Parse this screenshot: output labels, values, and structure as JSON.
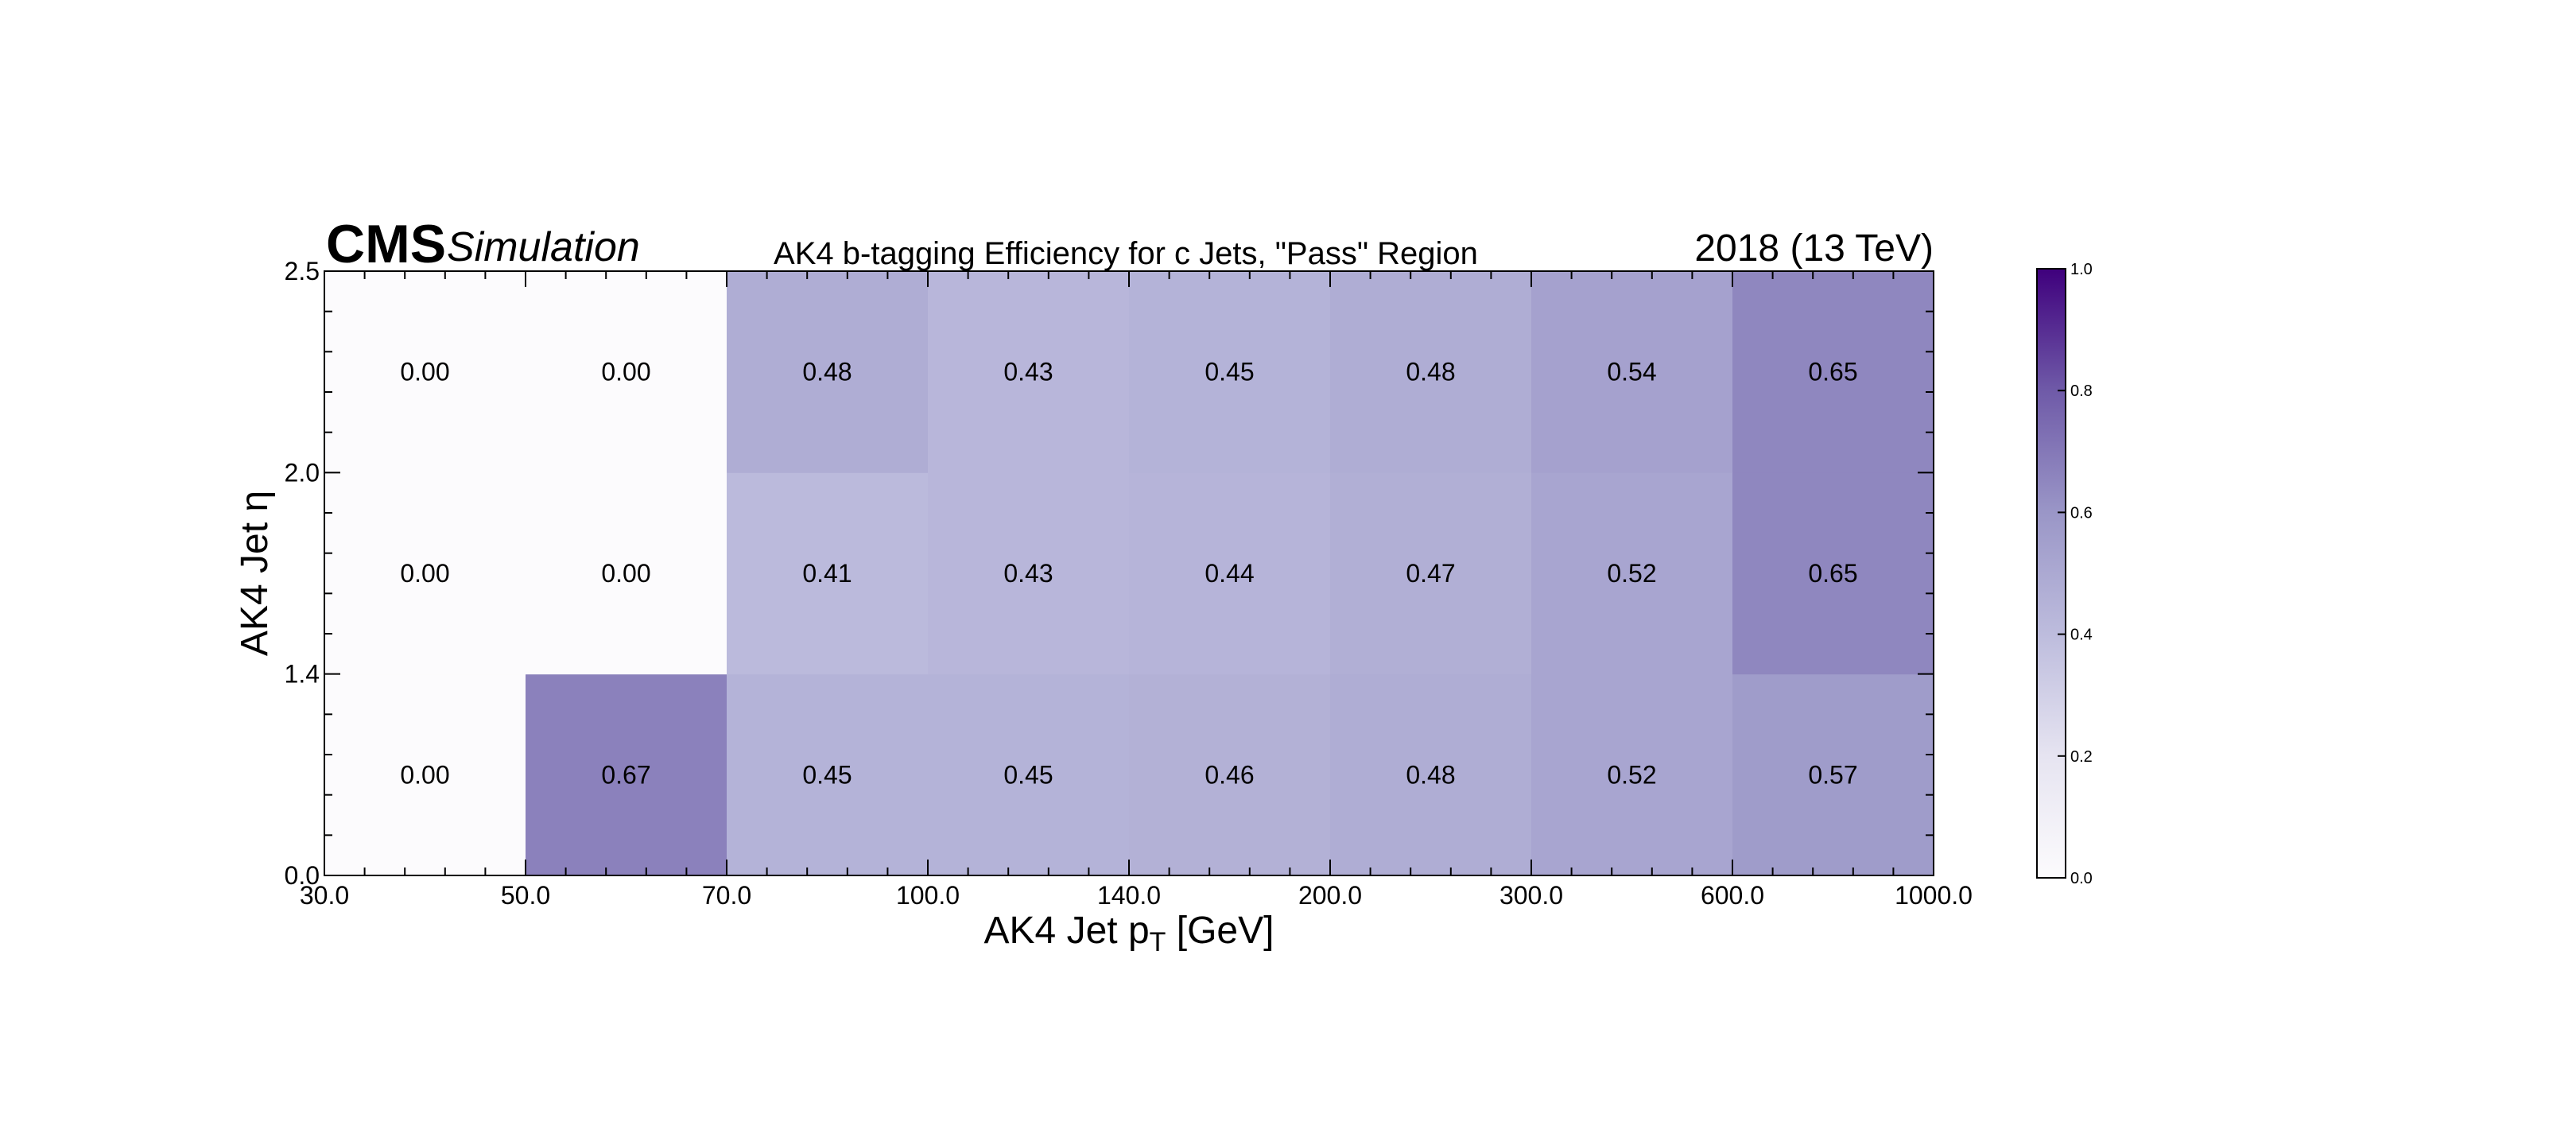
{
  "header": {
    "experiment": "CMS",
    "status": "Simulation",
    "lumi": "2018 (13 TeV)"
  },
  "chart_data": {
    "type": "heatmap",
    "title": "AK4 b-tagging Efficiency for c Jets, \"Pass\" Region",
    "xlabel_main": "AK4 Jet p",
    "xlabel_sub": "T",
    "xlabel_unit": " [GeV]",
    "ylabel": "AK4 Jet η",
    "x_edges": [
      30.0,
      50.0,
      70.0,
      100.0,
      140.0,
      200.0,
      300.0,
      600.0,
      1000.0
    ],
    "x_tick_labels": [
      "30.0",
      "50.0",
      "70.0",
      "100.0",
      "140.0",
      "200.0",
      "300.0",
      "600.0",
      "1000.0"
    ],
    "y_edges": [
      0.0,
      1.4,
      2.0,
      2.5
    ],
    "y_tick_labels": [
      "0.0",
      "1.4",
      "2.0",
      "2.5"
    ],
    "values": [
      [
        0.0,
        0.67,
        0.45,
        0.45,
        0.46,
        0.48,
        0.52,
        0.57
      ],
      [
        0.0,
        0.0,
        0.41,
        0.43,
        0.44,
        0.47,
        0.52,
        0.65
      ],
      [
        0.0,
        0.0,
        0.48,
        0.43,
        0.45,
        0.48,
        0.54,
        0.65
      ]
    ],
    "cell_labels": [
      [
        "0.00",
        "0.67",
        "0.45",
        "0.45",
        "0.46",
        "0.48",
        "0.52",
        "0.57"
      ],
      [
        "0.00",
        "0.00",
        "0.41",
        "0.43",
        "0.44",
        "0.47",
        "0.52",
        "0.65"
      ],
      [
        "0.00",
        "0.00",
        "0.48",
        "0.43",
        "0.45",
        "0.48",
        "0.54",
        "0.65"
      ]
    ],
    "x_scale": "categorical-bins",
    "colorbar": {
      "range": [
        0.0,
        1.0
      ],
      "ticks": [
        "0.0",
        "0.2",
        "0.4",
        "0.6",
        "0.8",
        "1.0"
      ],
      "colormap": "Purples",
      "low_color": "#fcfbfd",
      "high_color": "#3f007d"
    },
    "grid": false
  }
}
